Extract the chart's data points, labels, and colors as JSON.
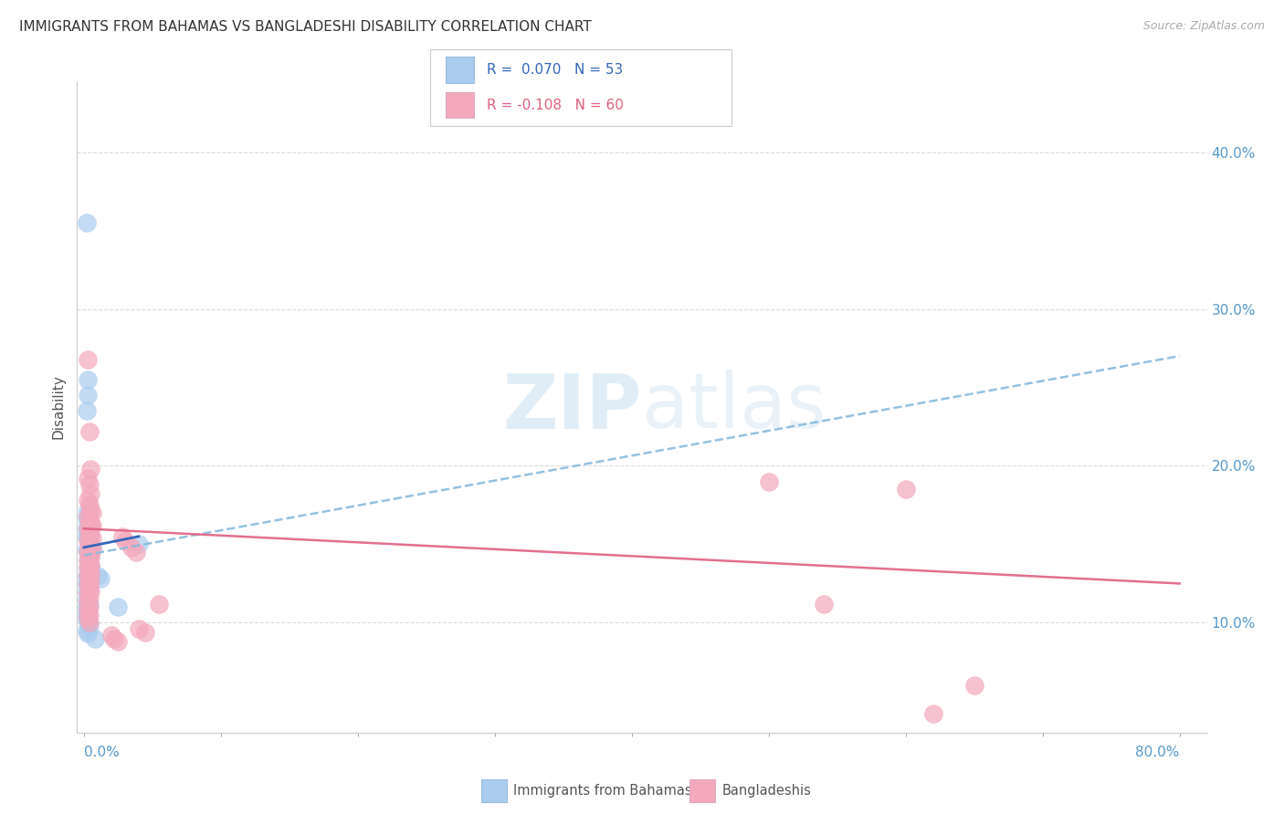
{
  "title": "IMMIGRANTS FROM BAHAMAS VS BANGLADESHI DISABILITY CORRELATION CHART",
  "source": "Source: ZipAtlas.com",
  "ylabel": "Disability",
  "ytick_vals": [
    0.1,
    0.2,
    0.3,
    0.4
  ],
  "ytick_labels": [
    "10.0%",
    "20.0%",
    "30.0%",
    "40.0%"
  ],
  "blue_R": 0.07,
  "pink_R": -0.108,
  "blue_N": 53,
  "pink_N": 60,
  "blue_color": "#aaccee",
  "pink_color": "#f4a8bc",
  "blue_line_color": "#3366bb",
  "blue_dash_color": "#88bbdd",
  "pink_line_color": "#e06080",
  "watermark": "ZIPatlas",
  "legend_label_blue": "Immigrants from Bahamas",
  "legend_label_pink": "Bangladeshis",
  "blue_points": [
    [
      0.002,
      0.355
    ],
    [
      0.003,
      0.255
    ],
    [
      0.003,
      0.245
    ],
    [
      0.002,
      0.235
    ],
    [
      0.003,
      0.172
    ],
    [
      0.004,
      0.17
    ],
    [
      0.002,
      0.168
    ],
    [
      0.003,
      0.165
    ],
    [
      0.004,
      0.163
    ],
    [
      0.005,
      0.162
    ],
    [
      0.002,
      0.16
    ],
    [
      0.003,
      0.158
    ],
    [
      0.004,
      0.156
    ],
    [
      0.002,
      0.155
    ],
    [
      0.003,
      0.153
    ],
    [
      0.004,
      0.152
    ],
    [
      0.005,
      0.15
    ],
    [
      0.006,
      0.148
    ],
    [
      0.002,
      0.147
    ],
    [
      0.003,
      0.145
    ],
    [
      0.004,
      0.143
    ],
    [
      0.005,
      0.142
    ],
    [
      0.003,
      0.14
    ],
    [
      0.004,
      0.138
    ],
    [
      0.005,
      0.136
    ],
    [
      0.003,
      0.135
    ],
    [
      0.004,
      0.133
    ],
    [
      0.005,
      0.132
    ],
    [
      0.002,
      0.13
    ],
    [
      0.003,
      0.128
    ],
    [
      0.004,
      0.127
    ],
    [
      0.002,
      0.125
    ],
    [
      0.003,
      0.124
    ],
    [
      0.004,
      0.122
    ],
    [
      0.002,
      0.12
    ],
    [
      0.003,
      0.118
    ],
    [
      0.002,
      0.115
    ],
    [
      0.003,
      0.113
    ],
    [
      0.004,
      0.112
    ],
    [
      0.002,
      0.11
    ],
    [
      0.003,
      0.108
    ],
    [
      0.002,
      0.106
    ],
    [
      0.003,
      0.105
    ],
    [
      0.002,
      0.103
    ],
    [
      0.003,
      0.1
    ],
    [
      0.004,
      0.098
    ],
    [
      0.002,
      0.095
    ],
    [
      0.003,
      0.093
    ],
    [
      0.01,
      0.13
    ],
    [
      0.012,
      0.128
    ],
    [
      0.008,
      0.09
    ],
    [
      0.04,
      0.15
    ],
    [
      0.025,
      0.11
    ]
  ],
  "pink_points": [
    [
      0.003,
      0.268
    ],
    [
      0.004,
      0.222
    ],
    [
      0.005,
      0.198
    ],
    [
      0.003,
      0.192
    ],
    [
      0.004,
      0.188
    ],
    [
      0.005,
      0.182
    ],
    [
      0.003,
      0.178
    ],
    [
      0.004,
      0.175
    ],
    [
      0.005,
      0.172
    ],
    [
      0.006,
      0.17
    ],
    [
      0.003,
      0.168
    ],
    [
      0.004,
      0.165
    ],
    [
      0.005,
      0.163
    ],
    [
      0.006,
      0.162
    ],
    [
      0.003,
      0.16
    ],
    [
      0.004,
      0.158
    ],
    [
      0.005,
      0.156
    ],
    [
      0.006,
      0.154
    ],
    [
      0.003,
      0.152
    ],
    [
      0.004,
      0.15
    ],
    [
      0.005,
      0.148
    ],
    [
      0.006,
      0.147
    ],
    [
      0.003,
      0.145
    ],
    [
      0.004,
      0.143
    ],
    [
      0.005,
      0.142
    ],
    [
      0.003,
      0.14
    ],
    [
      0.004,
      0.138
    ],
    [
      0.005,
      0.137
    ],
    [
      0.003,
      0.135
    ],
    [
      0.004,
      0.133
    ],
    [
      0.005,
      0.131
    ],
    [
      0.003,
      0.13
    ],
    [
      0.004,
      0.128
    ],
    [
      0.005,
      0.126
    ],
    [
      0.003,
      0.124
    ],
    [
      0.004,
      0.122
    ],
    [
      0.005,
      0.12
    ],
    [
      0.003,
      0.118
    ],
    [
      0.004,
      0.116
    ],
    [
      0.003,
      0.113
    ],
    [
      0.004,
      0.11
    ],
    [
      0.003,
      0.108
    ],
    [
      0.004,
      0.105
    ],
    [
      0.003,
      0.103
    ],
    [
      0.004,
      0.1
    ],
    [
      0.02,
      0.092
    ],
    [
      0.022,
      0.09
    ],
    [
      0.025,
      0.088
    ],
    [
      0.028,
      0.155
    ],
    [
      0.03,
      0.152
    ],
    [
      0.035,
      0.148
    ],
    [
      0.038,
      0.145
    ],
    [
      0.04,
      0.096
    ],
    [
      0.045,
      0.094
    ],
    [
      0.055,
      0.112
    ],
    [
      0.5,
      0.19
    ],
    [
      0.54,
      0.112
    ],
    [
      0.6,
      0.185
    ],
    [
      0.65,
      0.06
    ],
    [
      0.62,
      0.042
    ]
  ],
  "xmin": 0.0,
  "xmax": 0.82,
  "ymin": 0.03,
  "ymax": 0.445,
  "blue_trend_x": [
    0.0,
    0.8
  ],
  "blue_trend_y": [
    0.143,
    0.27
  ],
  "pink_trend_x": [
    0.0,
    0.8
  ],
  "pink_trend_y": [
    0.16,
    0.125
  ],
  "background_color": "#ffffff",
  "grid_color": "#d8d8d8"
}
